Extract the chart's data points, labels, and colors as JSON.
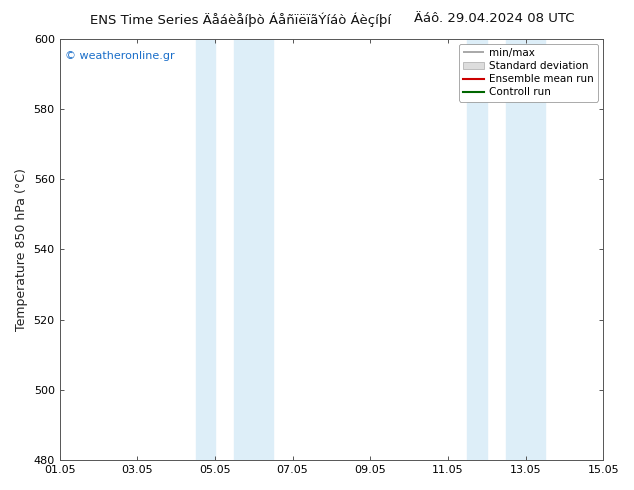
{
  "title": "ENS Time Series Äåáèåíþò ÁåñïëïãÝíáò Áèçíþí",
  "title_right": "Äáô. 29.04.2024 08 UTC",
  "ylabel": "Temperature 850 hPa (°C)",
  "ylim": [
    480,
    600
  ],
  "yticks": [
    480,
    500,
    520,
    540,
    560,
    580,
    600
  ],
  "xtick_labels": [
    "01.05",
    "03.05",
    "05.05",
    "07.05",
    "09.05",
    "11.05",
    "13.05",
    "15.05"
  ],
  "xtick_positions": [
    0,
    2,
    4,
    6,
    8,
    10,
    12,
    14
  ],
  "blue_bands": [
    {
      "x_start": 3.5,
      "x_end": 4.0
    },
    {
      "x_start": 4.5,
      "x_end": 5.5
    },
    {
      "x_start": 10.5,
      "x_end": 11.0
    },
    {
      "x_start": 11.5,
      "x_end": 12.5
    }
  ],
  "blue_band_color": "#ddeef8",
  "bg_color": "#ffffff",
  "watermark": "© weatheronline.gr",
  "watermark_color": "#1a6ec9",
  "legend_items": [
    {
      "label": "min/max",
      "color": "#999999",
      "type": "minmax"
    },
    {
      "label": "Standard deviation",
      "color": "#cccccc",
      "type": "std"
    },
    {
      "label": "Ensemble mean run",
      "color": "#cc0000",
      "type": "line"
    },
    {
      "label": "Controll run",
      "color": "#006600",
      "type": "line"
    }
  ],
  "title_fontsize": 9.5,
  "ylabel_fontsize": 9,
  "tick_fontsize": 8,
  "watermark_fontsize": 8,
  "legend_fontsize": 7.5
}
